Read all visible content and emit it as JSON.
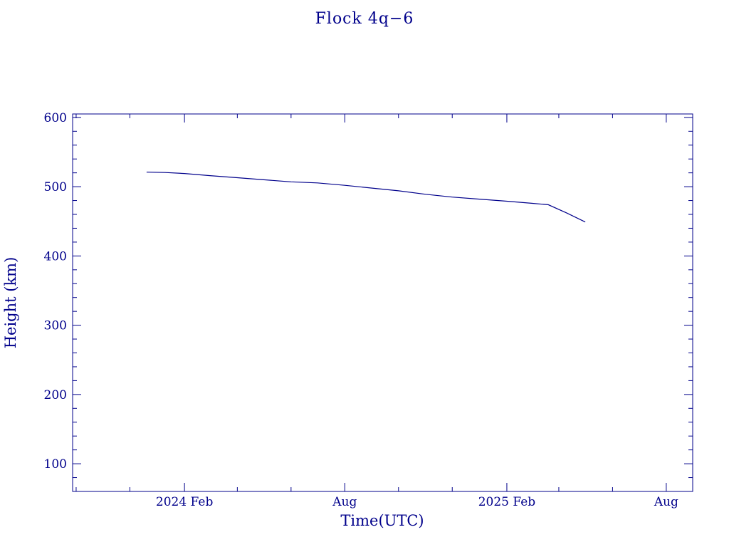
{
  "chart_data": {
    "type": "line",
    "title": "Flock 4q−6",
    "xlabel": "Time(UTC)",
    "ylabel": "Height (km)",
    "xlim": [
      "2023-09-27",
      "2025-08-31"
    ],
    "ylim": [
      60,
      605
    ],
    "x_ticks": [
      {
        "date": "2024-02-01",
        "label": "2024 Feb"
      },
      {
        "date": "2024-08-01",
        "label": "Aug"
      },
      {
        "date": "2025-02-01",
        "label": "2025 Feb"
      },
      {
        "date": "2025-08-01",
        "label": "Aug"
      }
    ],
    "y_ticks": [
      100,
      200,
      300,
      400,
      500,
      600
    ],
    "grid": false,
    "color": "#00008b",
    "series": [
      {
        "x": [
          "2023-12-20",
          "2024-01-10",
          "2024-02-01",
          "2024-03-01",
          "2024-04-01",
          "2024-05-01",
          "2024-06-01",
          "2024-07-01",
          "2024-08-01",
          "2024-09-01",
          "2024-10-01",
          "2024-11-01",
          "2024-12-01",
          "2025-01-01",
          "2025-02-01",
          "2025-03-01",
          "2025-03-20",
          "2025-04-10",
          "2025-05-01"
        ],
        "y": [
          521,
          520.5,
          519,
          516,
          513,
          510,
          507,
          505.5,
          502,
          498,
          494,
          489,
          485,
          482,
          479,
          476,
          474,
          462,
          449
        ]
      }
    ]
  }
}
